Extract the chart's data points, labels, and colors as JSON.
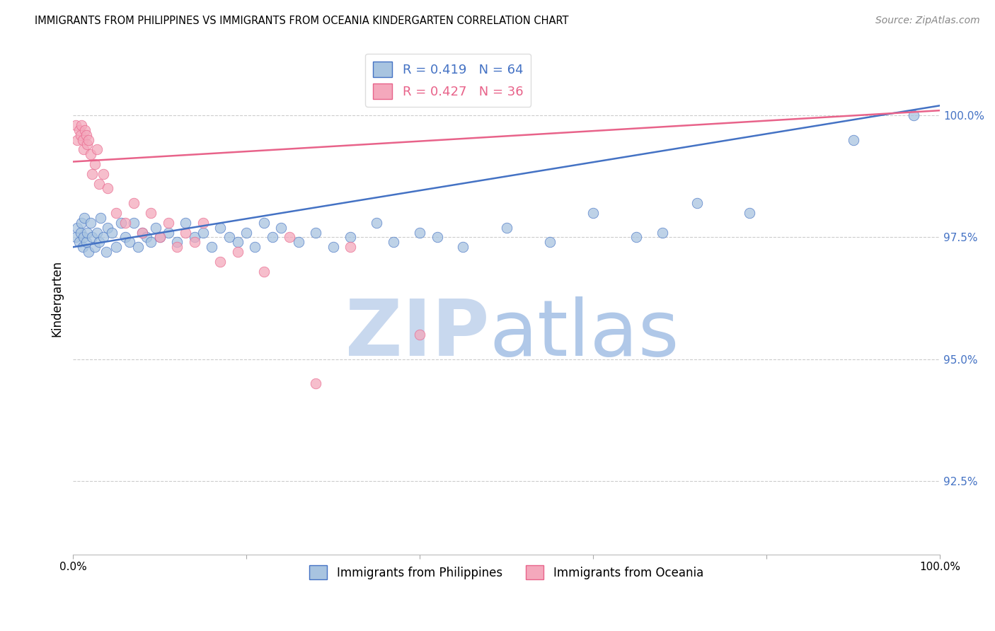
{
  "title": "IMMIGRANTS FROM PHILIPPINES VS IMMIGRANTS FROM OCEANIA KINDERGARTEN CORRELATION CHART",
  "source": "Source: ZipAtlas.com",
  "ylabel": "Kindergarten",
  "xmin": 0.0,
  "xmax": 100.0,
  "ymin": 91.0,
  "ymax": 101.5,
  "yticks": [
    92.5,
    95.0,
    97.5,
    100.0
  ],
  "ytick_labels": [
    "92.5%",
    "95.0%",
    "97.5%",
    "100.0%"
  ],
  "blue_line_color": "#4472c4",
  "pink_line_color": "#e8638a",
  "blue_scatter_color": "#a8c4e0",
  "pink_scatter_color": "#f4a8bc",
  "blue_line_start_y": 97.3,
  "blue_line_end_y": 100.2,
  "pink_line_start_y": 99.05,
  "pink_line_end_y": 100.1,
  "legend_entries": [
    {
      "label": "Immigrants from Philippines",
      "R": 0.419,
      "N": 64
    },
    {
      "label": "Immigrants from Oceania",
      "R": 0.427,
      "N": 36
    }
  ],
  "watermark_zip_color": "#c8d8ee",
  "watermark_atlas_color": "#b0c8e8",
  "background_color": "#ffffff",
  "grid_color": "#cccccc",
  "blue_x": [
    0.3,
    0.5,
    0.7,
    0.9,
    1.0,
    1.1,
    1.2,
    1.3,
    1.5,
    1.6,
    1.8,
    2.0,
    2.2,
    2.5,
    2.8,
    3.0,
    3.2,
    3.5,
    3.8,
    4.0,
    4.5,
    5.0,
    5.5,
    6.0,
    6.5,
    7.0,
    7.5,
    8.0,
    8.5,
    9.0,
    9.5,
    10.0,
    11.0,
    12.0,
    13.0,
    14.0,
    15.0,
    16.0,
    17.0,
    18.0,
    19.0,
    20.0,
    21.0,
    22.0,
    23.0,
    24.0,
    26.0,
    28.0,
    30.0,
    32.0,
    35.0,
    37.0,
    40.0,
    42.0,
    45.0,
    50.0,
    55.0,
    60.0,
    65.0,
    68.0,
    72.0,
    78.0,
    90.0,
    97.0
  ],
  "blue_y": [
    97.5,
    97.7,
    97.4,
    97.6,
    97.8,
    97.3,
    97.5,
    97.9,
    97.4,
    97.6,
    97.2,
    97.8,
    97.5,
    97.3,
    97.6,
    97.4,
    97.9,
    97.5,
    97.2,
    97.7,
    97.6,
    97.3,
    97.8,
    97.5,
    97.4,
    97.8,
    97.3,
    97.6,
    97.5,
    97.4,
    97.7,
    97.5,
    97.6,
    97.4,
    97.8,
    97.5,
    97.6,
    97.3,
    97.7,
    97.5,
    97.4,
    97.6,
    97.3,
    97.8,
    97.5,
    97.7,
    97.4,
    97.6,
    97.3,
    97.5,
    97.8,
    97.4,
    97.6,
    97.5,
    97.3,
    97.7,
    97.4,
    98.0,
    97.5,
    97.6,
    98.2,
    98.0,
    99.5,
    100.0
  ],
  "pink_x": [
    0.3,
    0.5,
    0.7,
    0.9,
    1.0,
    1.1,
    1.2,
    1.4,
    1.5,
    1.6,
    1.8,
    2.0,
    2.2,
    2.5,
    2.8,
    3.0,
    3.5,
    4.0,
    5.0,
    6.0,
    7.0,
    8.0,
    9.0,
    10.0,
    11.0,
    12.0,
    13.0,
    14.0,
    15.0,
    17.0,
    19.0,
    22.0,
    25.0,
    28.0,
    32.0,
    40.0
  ],
  "pink_y": [
    99.8,
    99.5,
    99.7,
    99.6,
    99.8,
    99.5,
    99.3,
    99.7,
    99.6,
    99.4,
    99.5,
    99.2,
    98.8,
    99.0,
    99.3,
    98.6,
    98.8,
    98.5,
    98.0,
    97.8,
    98.2,
    97.6,
    98.0,
    97.5,
    97.8,
    97.3,
    97.6,
    97.4,
    97.8,
    97.0,
    97.2,
    96.8,
    97.5,
    94.5,
    97.3,
    95.5
  ]
}
